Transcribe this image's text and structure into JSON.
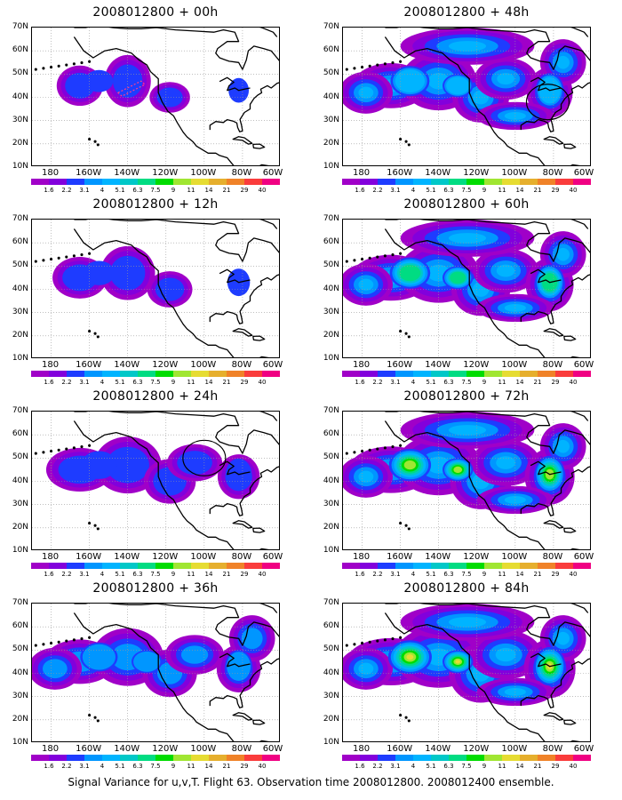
{
  "caption": "Signal Variance for u,v,T. Flight 63. Observation time 2008012800. 2008012400 ensemble.",
  "panels": [
    {
      "title": "2008012800 + 00h",
      "amp": 0.8,
      "spread": 0.55,
      "has_circle": false,
      "has_target": true
    },
    {
      "title": "2008012800 + 12h",
      "amp": 1.0,
      "spread": 0.65,
      "has_circle": false,
      "has_target": false
    },
    {
      "title": "2008012800 + 24h",
      "amp": 1.2,
      "spread": 0.8,
      "has_circle": true,
      "has_target": false
    },
    {
      "title": "2008012800 + 36h",
      "amp": 1.5,
      "spread": 0.85,
      "has_circle": false,
      "has_target": false
    },
    {
      "title": "2008012800 + 48h",
      "amp": 2.0,
      "spread": 0.9,
      "has_circle": true,
      "has_target": false
    },
    {
      "title": "2008012800 + 60h",
      "amp": 3.0,
      "spread": 0.95,
      "has_circle": false,
      "has_target": false
    },
    {
      "title": "2008012800 + 72h",
      "amp": 3.8,
      "spread": 1.0,
      "has_circle": false,
      "has_target": false
    },
    {
      "title": "2008012800 + 84h",
      "amp": 4.3,
      "spread": 1.05,
      "has_circle": false,
      "has_target": false
    }
  ],
  "lat_labels": [
    "70N",
    "60N",
    "50N",
    "40N",
    "30N",
    "20N",
    "10N"
  ],
  "lon_labels": [
    "180",
    "160W",
    "140W",
    "120W",
    "100W",
    "80W",
    "60W"
  ],
  "colorbar": {
    "labels": [
      "1.6",
      "2.2",
      "3.1",
      "4",
      "5.1",
      "6.3",
      "7.5",
      "9",
      "11",
      "14",
      "21",
      "29",
      "40"
    ],
    "colors": [
      "#a000c8",
      "#8200dc",
      "#1e3cff",
      "#0096ff",
      "#00b4ff",
      "#00c8c8",
      "#00dc82",
      "#00dc00",
      "#a0e632",
      "#e6dc32",
      "#e6af2d",
      "#f08228",
      "#fa3c3c",
      "#f00082"
    ]
  },
  "map_bounds": {
    "lon_min": -190,
    "lon_max": -60,
    "lat_min": 10,
    "lat_max": 70
  }
}
